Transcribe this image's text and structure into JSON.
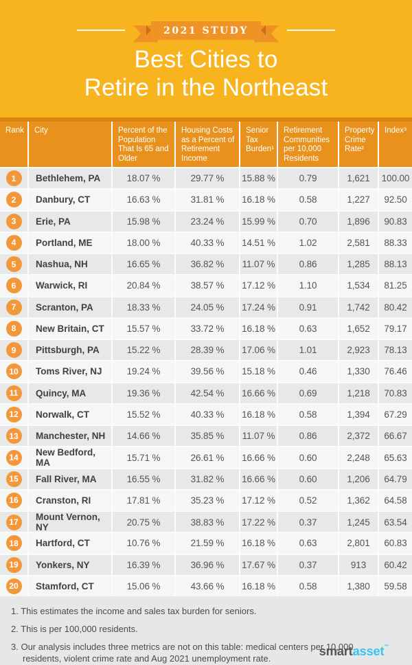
{
  "hero": {
    "badge": "2021 STUDY",
    "title_line1": "Best Cities to",
    "title_line2": "Retire in the Northeast"
  },
  "chart_data": {
    "type": "table",
    "title": "Best Cities to Retire in the Northeast",
    "subtitle": "2021 Study",
    "columns": [
      "Rank",
      "City",
      "Percent of the Population That Is 65 and Older",
      "Housing Costs as a Percent of Retirement Income",
      "Senior Tax Burden¹",
      "Retirement Communities per 10,000 Residents",
      "Property Crime Rate²",
      "Index³"
    ],
    "rows": [
      [
        "1",
        "Bethlehem, PA",
        "18.07 %",
        "29.77 %",
        "15.88 %",
        "0.79",
        "1,621",
        "100.00"
      ],
      [
        "2",
        "Danbury, CT",
        "16.63 %",
        "31.81 %",
        "16.18 %",
        "0.58",
        "1,227",
        "92.50"
      ],
      [
        "3",
        "Erie, PA",
        "15.98 %",
        "23.24 %",
        "15.99 %",
        "0.70",
        "1,896",
        "90.83"
      ],
      [
        "4",
        "Portland, ME",
        "18.00 %",
        "40.33 %",
        "14.51 %",
        "1.02",
        "2,581",
        "88.33"
      ],
      [
        "5",
        "Nashua, NH",
        "16.65 %",
        "36.82 %",
        "11.07 %",
        "0.86",
        "1,285",
        "88.13"
      ],
      [
        "6",
        "Warwick, RI",
        "20.84 %",
        "38.57 %",
        "17.12 %",
        "1.10",
        "1,534",
        "81.25"
      ],
      [
        "7",
        "Scranton, PA",
        "18.33 %",
        "24.05 %",
        "17.24 %",
        "0.91",
        "1,742",
        "80.42"
      ],
      [
        "8",
        "New Britain, CT",
        "15.57 %",
        "33.72 %",
        "16.18 %",
        "0.63",
        "1,652",
        "79.17"
      ],
      [
        "9",
        "Pittsburgh, PA",
        "15.22 %",
        "28.39 %",
        "17.06 %",
        "1.01",
        "2,923",
        "78.13"
      ],
      [
        "10",
        "Toms River, NJ",
        "19.24 %",
        "39.56 %",
        "15.18 %",
        "0.46",
        "1,330",
        "76.46"
      ],
      [
        "11",
        "Quincy, MA",
        "19.36 %",
        "42.54 %",
        "16.66 %",
        "0.69",
        "1,218",
        "70.83"
      ],
      [
        "12",
        "Norwalk, CT",
        "15.52 %",
        "40.33 %",
        "16.18 %",
        "0.58",
        "1,394",
        "67.29"
      ],
      [
        "13",
        "Manchester, NH",
        "14.66 %",
        "35.85 %",
        "11.07 %",
        "0.86",
        "2,372",
        "66.67"
      ],
      [
        "14",
        "New Bedford, MA",
        "15.71 %",
        "26.61 %",
        "16.66 %",
        "0.60",
        "2,248",
        "65.63"
      ],
      [
        "15",
        "Fall River, MA",
        "16.55 %",
        "31.82 %",
        "16.66 %",
        "0.60",
        "1,206",
        "64.79"
      ],
      [
        "16",
        "Cranston, RI",
        "17.81 %",
        "35.23 %",
        "17.12 %",
        "0.52",
        "1,362",
        "64.58"
      ],
      [
        "17",
        "Mount Vernon, NY",
        "20.75 %",
        "38.83 %",
        "17.22 %",
        "0.37",
        "1,245",
        "63.54"
      ],
      [
        "18",
        "Hartford, CT",
        "10.76 %",
        "21.59 %",
        "16.18 %",
        "0.63",
        "2,801",
        "60.83"
      ],
      [
        "19",
        "Yonkers, NY",
        "16.39 %",
        "36.96 %",
        "17.67 %",
        "0.37",
        "913",
        "60.42"
      ],
      [
        "20",
        "Stamford, CT",
        "15.06 %",
        "43.66 %",
        "16.18 %",
        "0.58",
        "1,380",
        "59.58"
      ]
    ]
  },
  "footnotes": [
    "1. This estimates the income and sales tax burden for seniors.",
    "2. This is per 100,000 residents.",
    "3. Our analysis includes three metrics are not on this table: medical centers per 10,000 residents, violent crime rate and Aug 2021 unemployment rate."
  ],
  "logo": {
    "part1": "smart",
    "part2": "asset",
    "tm": "™"
  },
  "colors": {
    "hero_yellow": "#F7B41F",
    "ribbon_orange": "#F09327",
    "table_header_orange": "#E8911D",
    "rank_badge_orange": "#F2983B",
    "row_gray": "#E7E8E8",
    "row_white": "#F5F6F6",
    "logo_blue": "#3EC1F0"
  }
}
